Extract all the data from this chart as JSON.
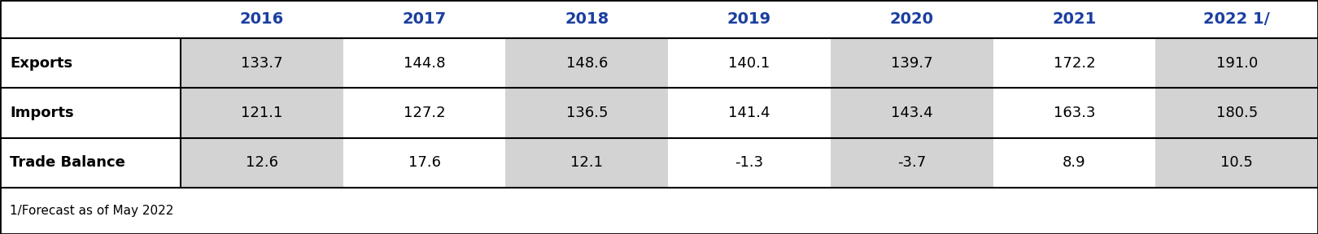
{
  "years": [
    "2016",
    "2017",
    "2018",
    "2019",
    "2020",
    "2021",
    "2022 1/"
  ],
  "rows": [
    {
      "label": "Exports",
      "values": [
        "133.7",
        "144.8",
        "148.6",
        "140.1",
        "139.7",
        "172.2",
        "191.0"
      ]
    },
    {
      "label": "Imports",
      "values": [
        "121.1",
        "127.2",
        "136.5",
        "141.4",
        "143.4",
        "163.3",
        "180.5"
      ]
    },
    {
      "label": "Trade Balance",
      "values": [
        "12.6",
        "17.6",
        "12.1",
        "-1.3",
        "-3.7",
        "8.9",
        "10.5"
      ]
    }
  ],
  "footnote": "1/Forecast as of May 2022",
  "header_text_color": "#1B3FA0",
  "shaded_cols": [
    0,
    2,
    4,
    6
  ],
  "shaded_color": "#D3D3D3",
  "white_color": "#FFFFFF",
  "border_color": "#000000",
  "fig_width": 16.2,
  "fig_height": 2.88,
  "dpi": 100,
  "header_fontsize": 14,
  "data_fontsize": 13,
  "label_fontsize": 13,
  "footnote_fontsize": 11
}
